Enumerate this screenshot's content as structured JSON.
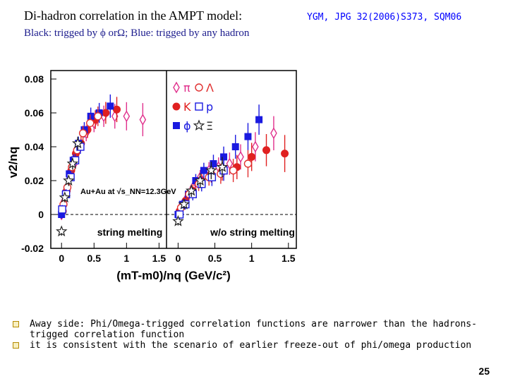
{
  "slide": {
    "title": "Di-hadron correlation in the AMPT model:",
    "reference": "YGM, JPG 32(2006)S373, SQM06",
    "subtitle": "Black: trigged by ϕ orΩ; Blue: trigged by any hadron",
    "bullets": [
      "Away side: Phi/Omega-trigged correlation functions are narrower than the hadrons-trigged correlation function",
      "it is consistent with the scenario of earlier freeze-out of phi/omega production"
    ],
    "page_number": "25"
  },
  "colors": {
    "pi": "#e0308c",
    "K": "#e02020",
    "phi": "#1a1ae0",
    "Lambda": "#e03030",
    "p": "#1a1ae0",
    "Xi": "#222222",
    "subtitle": "#1a1a8c",
    "reference": "#0000ff"
  },
  "chart_data": {
    "type": "scatter",
    "ylabel": "v2/nq",
    "xlabel": "(mT-m0)/nq (GeV/c²)",
    "ylim": [
      -0.02,
      0.085
    ],
    "xlim": [
      -0.1,
      1.55
    ],
    "yticks": [
      "-0.02",
      "0",
      "0.02",
      "0.04",
      "0.06",
      "0.08"
    ],
    "xticks": [
      "0",
      "0.5",
      "1",
      "1.5"
    ],
    "legend": [
      {
        "name": "π",
        "color": "pi",
        "marker": "open-diamond"
      },
      {
        "name": "K",
        "color": "K",
        "marker": "filled-circle"
      },
      {
        "name": "ϕ",
        "color": "phi",
        "marker": "filled-square"
      },
      {
        "name": "Λ",
        "color": "Lambda",
        "marker": "open-circle"
      },
      {
        "name": "p",
        "color": "p",
        "marker": "open-square"
      },
      {
        "name": "Ξ",
        "color": "Xi",
        "marker": "open-star"
      }
    ],
    "panels": [
      {
        "label": "string melting",
        "annotation": "Au+Au at √s_NN=12.3GeV",
        "series": [
          {
            "name": "π",
            "points": [
              [
                0.0,
                0.0
              ],
              [
                0.04,
                0.008
              ],
              [
                0.08,
                0.014
              ],
              [
                0.13,
                0.022
              ],
              [
                0.2,
                0.03
              ],
              [
                0.28,
                0.04
              ],
              [
                0.38,
                0.048
              ],
              [
                0.5,
                0.054
              ],
              [
                0.65,
                0.058
              ],
              [
                0.82,
                0.058
              ],
              [
                1.0,
                0.058
              ],
              [
                1.25,
                0.056
              ]
            ]
          },
          {
            "name": "K",
            "points": [
              [
                0.02,
                0.002
              ],
              [
                0.08,
                0.014
              ],
              [
                0.15,
                0.026
              ],
              [
                0.22,
                0.036
              ],
              [
                0.3,
                0.042
              ],
              [
                0.4,
                0.05
              ],
              [
                0.52,
                0.056
              ],
              [
                0.68,
                0.06
              ],
              [
                0.85,
                0.062
              ]
            ]
          },
          {
            "name": "ϕ",
            "points": [
              [
                0.0,
                0.0
              ],
              [
                0.06,
                0.012
              ],
              [
                0.12,
                0.024
              ],
              [
                0.18,
                0.032
              ],
              [
                0.26,
                0.042
              ],
              [
                0.35,
                0.05
              ],
              [
                0.45,
                0.058
              ],
              [
                0.58,
                0.06
              ],
              [
                0.75,
                0.064
              ]
            ]
          },
          {
            "name": "Λ",
            "points": [
              [
                0.03,
                0.006
              ],
              [
                0.09,
                0.016
              ],
              [
                0.16,
                0.028
              ],
              [
                0.24,
                0.038
              ],
              [
                0.33,
                0.048
              ],
              [
                0.44,
                0.054
              ],
              [
                0.56,
                0.058
              ]
            ]
          },
          {
            "name": "p",
            "points": [
              [
                0.01,
                0.003
              ],
              [
                0.07,
                0.012
              ],
              [
                0.14,
                0.022
              ],
              [
                0.21,
                0.032
              ],
              [
                0.29,
                0.04
              ]
            ]
          },
          {
            "name": "Ξ",
            "points": [
              [
                0.0,
                -0.01
              ],
              [
                0.05,
                0.01
              ],
              [
                0.11,
                0.02
              ],
              [
                0.17,
                0.03
              ],
              [
                0.25,
                0.042
              ]
            ]
          }
        ]
      },
      {
        "label": "w/o string melting",
        "series": [
          {
            "name": "π",
            "points": [
              [
                0.0,
                0.0
              ],
              [
                0.05,
                0.004
              ],
              [
                0.12,
                0.01
              ],
              [
                0.2,
                0.016
              ],
              [
                0.3,
                0.022
              ],
              [
                0.42,
                0.026
              ],
              [
                0.55,
                0.028
              ],
              [
                0.7,
                0.03
              ],
              [
                0.85,
                0.034
              ],
              [
                1.05,
                0.04
              ],
              [
                1.3,
                0.048
              ]
            ]
          },
          {
            "name": "K",
            "points": [
              [
                0.02,
                0.002
              ],
              [
                0.1,
                0.008
              ],
              [
                0.2,
                0.014
              ],
              [
                0.32,
                0.02
              ],
              [
                0.45,
                0.024
              ],
              [
                0.6,
                0.026
              ],
              [
                0.8,
                0.028
              ],
              [
                1.0,
                0.034
              ],
              [
                1.2,
                0.038
              ],
              [
                1.45,
                0.036
              ]
            ]
          },
          {
            "name": "ϕ",
            "points": [
              [
                0.0,
                0.0
              ],
              [
                0.06,
                0.006
              ],
              [
                0.14,
                0.012
              ],
              [
                0.24,
                0.02
              ],
              [
                0.35,
                0.026
              ],
              [
                0.48,
                0.03
              ],
              [
                0.62,
                0.034
              ],
              [
                0.78,
                0.04
              ],
              [
                0.95,
                0.046
              ],
              [
                1.1,
                0.056
              ]
            ]
          },
          {
            "name": "Λ",
            "points": [
              [
                0.04,
                0.004
              ],
              [
                0.15,
                0.012
              ],
              [
                0.28,
                0.018
              ],
              [
                0.42,
                0.022
              ],
              [
                0.58,
                0.024
              ],
              [
                0.75,
                0.026
              ],
              [
                0.95,
                0.03
              ]
            ]
          },
          {
            "name": "p",
            "points": [
              [
                0.02,
                0.0
              ],
              [
                0.1,
                0.006
              ],
              [
                0.2,
                0.012
              ],
              [
                0.32,
                0.018
              ],
              [
                0.46,
                0.022
              ],
              [
                0.62,
                0.026
              ]
            ]
          },
          {
            "name": "Ξ",
            "points": [
              [
                0.0,
                -0.004
              ],
              [
                0.08,
                0.006
              ],
              [
                0.18,
                0.014
              ],
              [
                0.3,
                0.02
              ],
              [
                0.45,
                0.026
              ],
              [
                0.6,
                0.028
              ]
            ]
          }
        ]
      }
    ]
  }
}
